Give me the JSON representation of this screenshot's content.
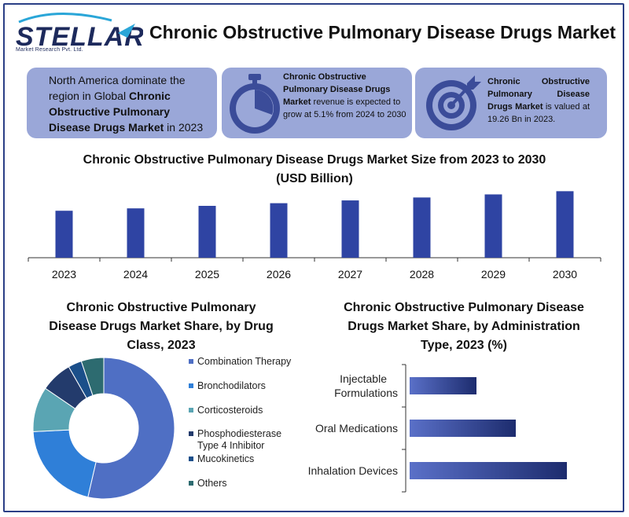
{
  "logo": {
    "name": "STELLAR",
    "sub": "Market Research Pvt. Ltd."
  },
  "title": "Chronic Obstructive Pulmonary Disease Drugs Market",
  "cards": {
    "card1": {
      "pre": "North America dominate the region in Global ",
      "bold": "Chronic Obstructive Pulmonary Disease Drugs Market",
      "post": " in 2023"
    },
    "card2": {
      "bold": "Chronic Obstructive Pulmonary Disease Drugs Market",
      "post": " revenue is expected to grow at 5.1% from 2024 to 2030"
    },
    "card3": {
      "bold": "Chronic Obstructive Pulmonary Disease Drugs Market",
      "post": " is valued at 19.26 Bn in 2023."
    }
  },
  "icons": {
    "card2": "stopwatch-icon",
    "card3": "target-icon"
  },
  "colors": {
    "card_bg": "#9aa7d8",
    "bar": "#2f44a3",
    "frame": "#2b3f86"
  },
  "chart_data": [
    {
      "type": "bar",
      "title": "Chronic Obstructive Pulmonary Disease Drugs Market Size from 2023 to 2030 (USD Billion)",
      "categories": [
        "2023",
        "2024",
        "2025",
        "2026",
        "2027",
        "2028",
        "2029",
        "2030"
      ],
      "values": [
        19.26,
        20.24,
        21.27,
        22.36,
        23.5,
        24.7,
        25.96,
        27.28
      ],
      "ylim": [
        0,
        29
      ],
      "grid": false
    },
    {
      "type": "pie",
      "title": "Chronic Obstructive Pulmonary Disease Drugs Market Share, by Drug Class, 2023",
      "legend_position": "right",
      "categories": [
        "Combination Therapy",
        "Bronchodilators",
        "Corticosteroids",
        "Phosphodiesterase Type 4 Inhibitor",
        "Mucokinetics",
        "Others"
      ],
      "values": [
        52,
        20,
        10,
        7,
        3,
        5
      ],
      "colors": [
        "#4f6fc4",
        "#2f7fd8",
        "#5aa5b3",
        "#233b6c",
        "#1b4f8a",
        "#2d6b70"
      ]
    },
    {
      "type": "bar",
      "orientation": "horizontal",
      "title": "Chronic Obstructive Pulmonary Disease Drugs Market Share, by Administration Type, 2023 (%)",
      "categories": [
        "Injectable Formulations",
        "Oral Medications",
        "Inhalation Devices"
      ],
      "category_lines": [
        [
          "Injectable",
          "Formulations"
        ],
        [
          "Oral Medications"
        ],
        [
          "Inhalation Devices"
        ]
      ],
      "values": [
        17,
        27,
        40
      ],
      "xlim": [
        0,
        52
      ]
    }
  ]
}
